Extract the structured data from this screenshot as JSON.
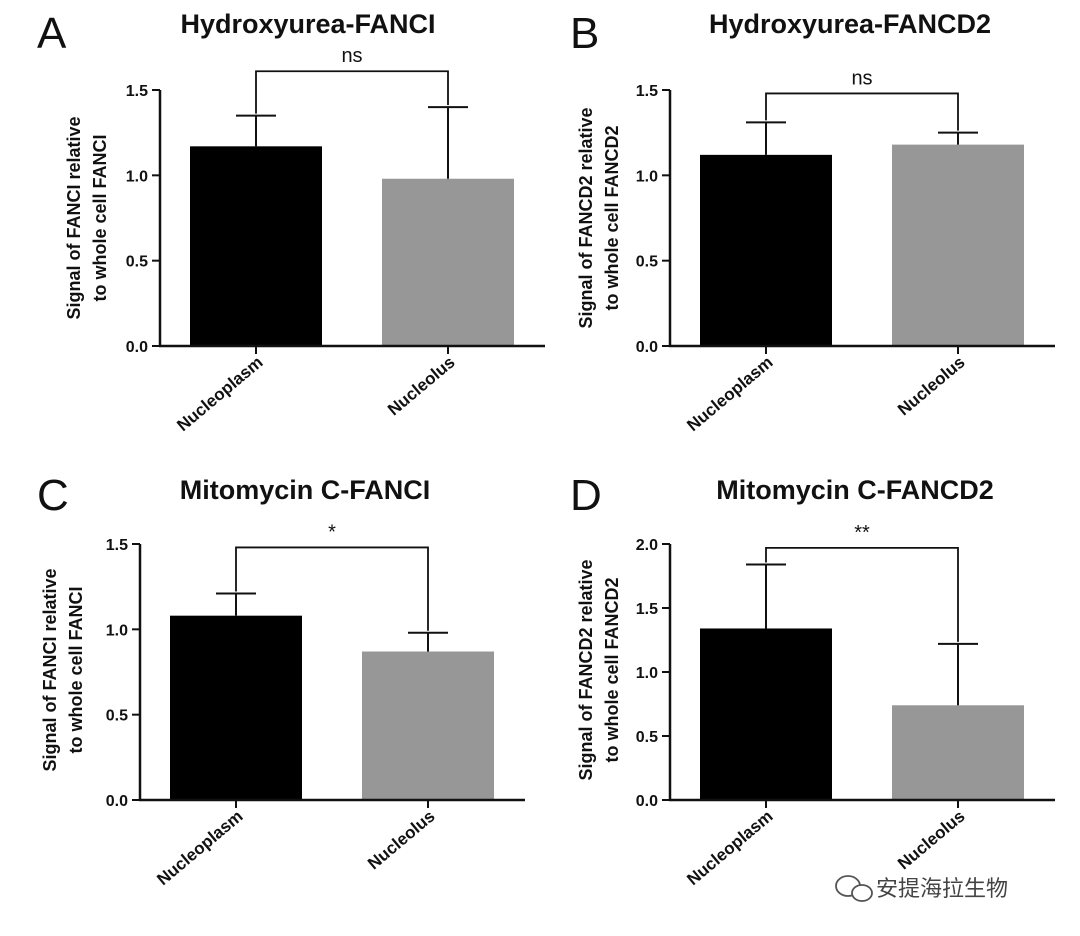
{
  "colors": {
    "nucleoplasm": "#000000",
    "nucleolus": "#979797",
    "axis": "#111111"
  },
  "watermark": {
    "icon": "wechat-icon",
    "text": "安提海拉生物"
  },
  "chart_data": [
    {
      "panel": "A",
      "type": "bar",
      "title": "Hydroxyurea-FANCI",
      "ylabel": [
        "Signal of FANCI relative",
        "to whole cell FANCI"
      ],
      "categories": [
        "Nucleoplasm",
        "Nucleolus"
      ],
      "values": [
        1.17,
        0.98
      ],
      "errors": [
        0.18,
        0.42
      ],
      "ylim": [
        0,
        1.5
      ],
      "yticks": [
        "0.0",
        "0.5",
        "1.0",
        "1.5"
      ],
      "significance": "ns",
      "bracket_top": 1.61
    },
    {
      "panel": "B",
      "type": "bar",
      "title": "Hydroxyurea-FANCD2",
      "ylabel": [
        "Signal of FANCD2 relative",
        "to whole cell FANCD2"
      ],
      "categories": [
        "Nucleoplasm",
        "Nucleolus"
      ],
      "values": [
        1.12,
        1.18
      ],
      "errors": [
        0.19,
        0.07
      ],
      "ylim": [
        0,
        1.5
      ],
      "yticks": [
        "0.0",
        "0.5",
        "1.0",
        "1.5"
      ],
      "significance": "ns",
      "bracket_top": 1.48
    },
    {
      "panel": "C",
      "type": "bar",
      "title": "Mitomycin C-FANCI",
      "ylabel": [
        "Signal of FANCI relative",
        "to whole cell FANCI"
      ],
      "categories": [
        "Nucleoplasm",
        "Nucleolus"
      ],
      "values": [
        1.08,
        0.87
      ],
      "errors": [
        0.13,
        0.11
      ],
      "ylim": [
        0,
        1.5
      ],
      "yticks": [
        "0.0",
        "0.5",
        "1.0",
        "1.5"
      ],
      "significance": "*",
      "bracket_top": 1.48
    },
    {
      "panel": "D",
      "type": "bar",
      "title": "Mitomycin C-FANCD2",
      "ylabel": [
        "Signal of FANCD2 relative",
        "to whole cell FANCD2"
      ],
      "categories": [
        "Nucleoplasm",
        "Nucleolus"
      ],
      "values": [
        1.34,
        0.74
      ],
      "errors": [
        0.5,
        0.48
      ],
      "ylim": [
        0,
        2.0
      ],
      "yticks": [
        "0.0",
        "0.5",
        "1.0",
        "1.5",
        "2.0"
      ],
      "significance": "**",
      "bracket_top": 1.97
    }
  ]
}
